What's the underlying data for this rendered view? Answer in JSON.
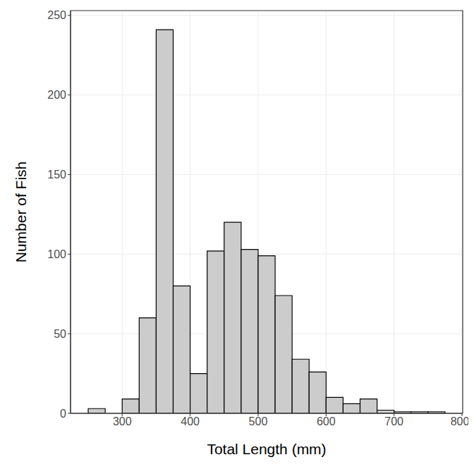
{
  "chart_data": {
    "type": "histogram",
    "x_label": "Total Length (mm)",
    "y_label": "Number of Fish",
    "bins": [
      250,
      275,
      300,
      325,
      350,
      375,
      400,
      425,
      450,
      475,
      500,
      525,
      550,
      575,
      600,
      625,
      650,
      675,
      700,
      725,
      750,
      775
    ],
    "values": [
      3,
      0,
      9,
      60,
      241,
      80,
      25,
      102,
      120,
      103,
      99,
      74,
      34,
      26,
      10,
      6,
      9,
      2,
      1,
      1,
      1
    ],
    "color": "#cccccc",
    "xlim": [
      224,
      801
    ],
    "ylim": [
      0,
      253
    ],
    "xticks": [
      300,
      400,
      500,
      600,
      700,
      800
    ],
    "yticks": [
      0,
      50,
      100,
      150,
      200,
      250
    ],
    "grid": true
  }
}
